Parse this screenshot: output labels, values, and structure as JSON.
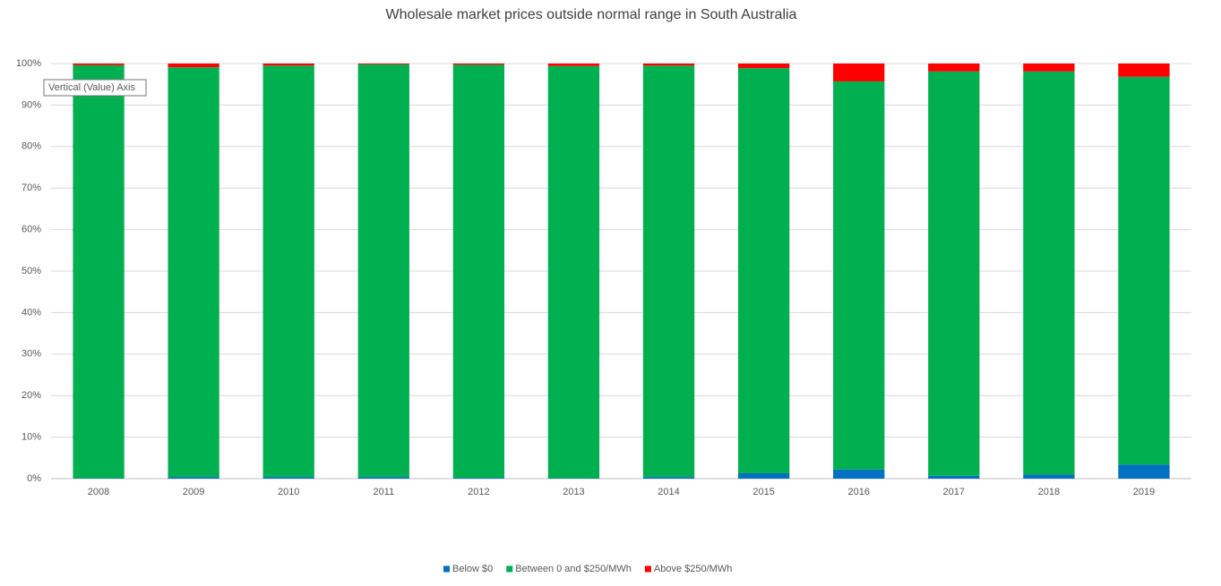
{
  "chart_data": {
    "type": "stacked_bar_100",
    "title": "Wholesale market prices outside normal range in South Australia",
    "categories": [
      "2008",
      "2009",
      "2010",
      "2011",
      "2012",
      "2013",
      "2014",
      "2015",
      "2016",
      "2017",
      "2018",
      "2019"
    ],
    "series": [
      {
        "name": "Below $0",
        "color": "#0070c0",
        "values": [
          0.1,
          0.4,
          0.4,
          0.4,
          0.2,
          0.1,
          0.4,
          1.3,
          2.2,
          0.7,
          1.0,
          3.4
        ]
      },
      {
        "name": "Between 0 and $250/MWh",
        "color": "#00b050",
        "values": [
          99.5,
          98.7,
          99.1,
          99.4,
          99.5,
          99.3,
          99.1,
          97.6,
          93.5,
          97.4,
          97.1,
          93.4
        ]
      },
      {
        "name": "Above $250/MWh",
        "color": "#ff0000",
        "values": [
          0.4,
          0.9,
          0.5,
          0.2,
          0.3,
          0.6,
          0.5,
          1.1,
          4.3,
          1.9,
          1.9,
          3.2
        ]
      }
    ],
    "ylim": [
      0,
      100
    ],
    "yticks": [
      {
        "value": 0,
        "label": "0%"
      },
      {
        "value": 10,
        "label": "10%"
      },
      {
        "value": 20,
        "label": "20%"
      },
      {
        "value": 30,
        "label": "30%"
      },
      {
        "value": 40,
        "label": "40%"
      },
      {
        "value": 50,
        "label": "50%"
      },
      {
        "value": 60,
        "label": "60%"
      },
      {
        "value": 70,
        "label": "70%"
      },
      {
        "value": 80,
        "label": "80%"
      },
      {
        "value": 90,
        "label": "90%"
      },
      {
        "value": 100,
        "label": "100%"
      }
    ],
    "grid": true,
    "legend": "bottom",
    "tooltip": "Vertical (Value) Axis"
  }
}
